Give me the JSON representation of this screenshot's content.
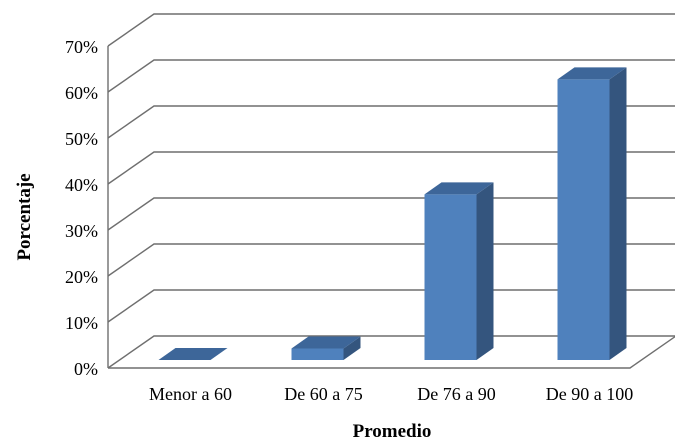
{
  "chart_data": {
    "type": "bar",
    "title": "",
    "xlabel": "Promedio",
    "ylabel": "Porcentaje",
    "categories": [
      "Menor a 60",
      "De 60 a 75",
      "De 76 a 90",
      "De 90 a 100"
    ],
    "values": [
      0,
      2.5,
      36,
      61
    ],
    "ylim": [
      0,
      70
    ],
    "yticks": [
      "0%",
      "10%",
      "20%",
      "30%",
      "40%",
      "50%",
      "60%",
      "70%"
    ],
    "grid": true,
    "legend": "none",
    "colors": {
      "front": "#4f81bd",
      "side": "#34557e",
      "top": "#3d6699"
    }
  }
}
